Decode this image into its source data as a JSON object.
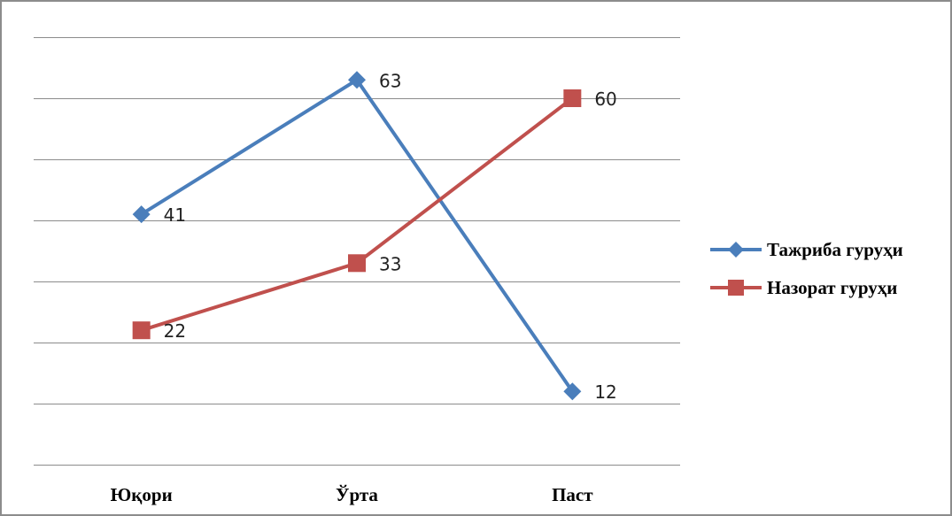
{
  "chart_data": {
    "type": "line",
    "categories": [
      "Юқори",
      "Ўрта",
      "Паст"
    ],
    "series": [
      {
        "name": "Тажриба гуруҳи",
        "values": [
          41,
          63,
          12
        ],
        "color": "#4a7ebb",
        "marker": "diamond"
      },
      {
        "name": "Назорат гуруҳи",
        "values": [
          22,
          33,
          60
        ],
        "color": "#c0504d",
        "marker": "square"
      }
    ],
    "ylim": [
      0,
      70
    ],
    "y_gridline_step": 10,
    "y_tick_labels_shown": false,
    "grid": true,
    "legend": "right",
    "data_labels": true
  }
}
